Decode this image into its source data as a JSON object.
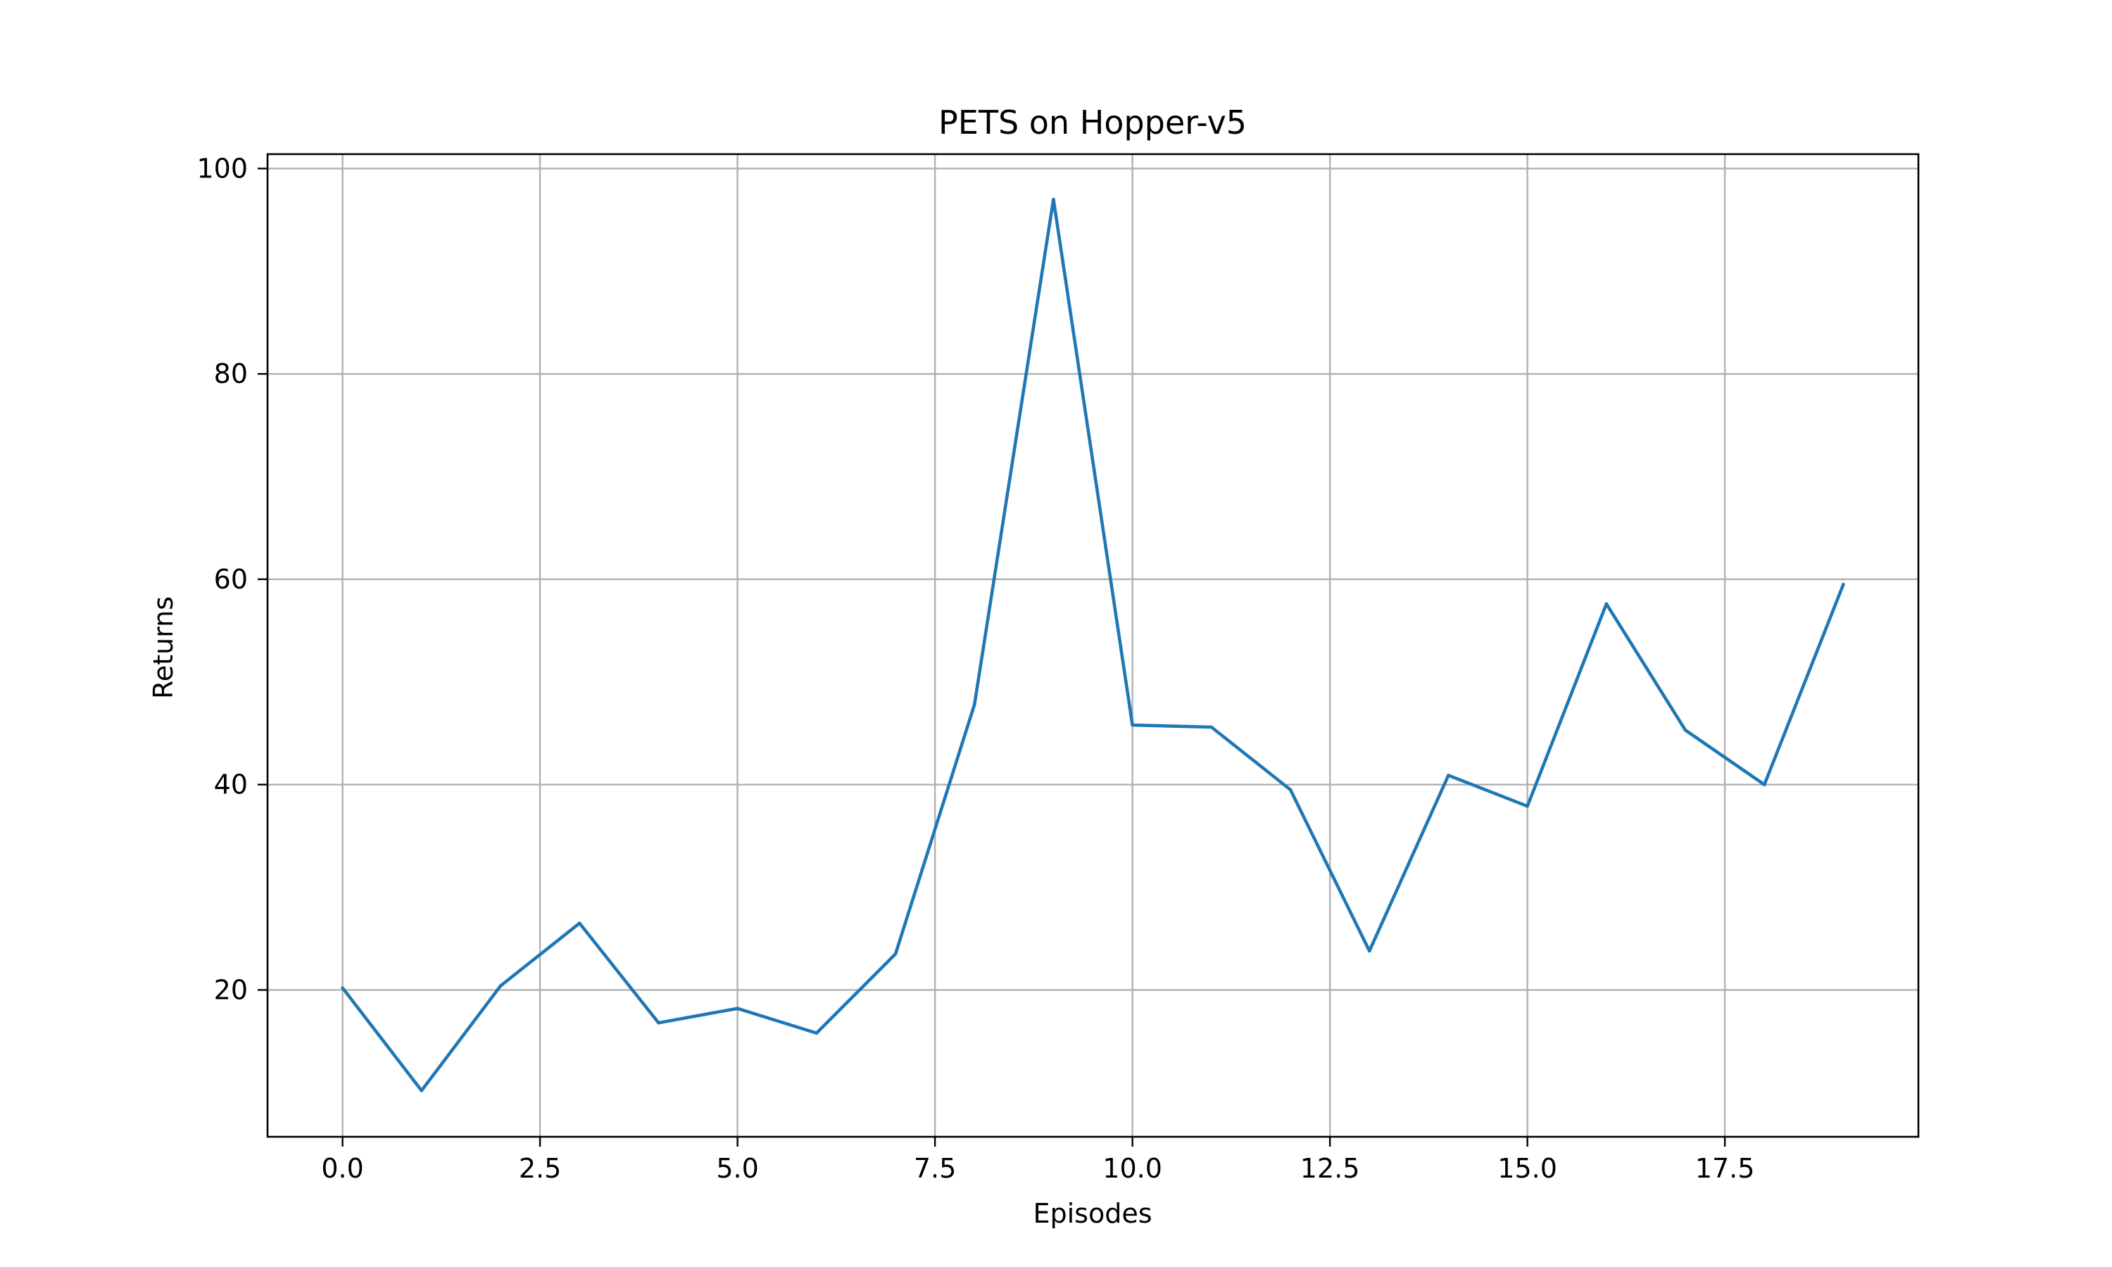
{
  "chart_data": {
    "type": "line",
    "title": "PETS on Hopper-v5",
    "xlabel": "Episodes",
    "ylabel": "Returns",
    "xlim": [
      -0.95,
      19.95
    ],
    "ylim": [
      5.7,
      101.4
    ],
    "xticks": [
      0.0,
      2.5,
      5.0,
      7.5,
      10.0,
      12.5,
      15.0,
      17.5
    ],
    "xtick_labels": [
      "0.0",
      "2.5",
      "5.0",
      "7.5",
      "10.0",
      "12.5",
      "15.0",
      "17.5"
    ],
    "yticks": [
      20,
      40,
      60,
      80,
      100
    ],
    "ytick_labels": [
      "20",
      "40",
      "60",
      "80",
      "100"
    ],
    "grid": true,
    "series": [
      {
        "color": "#1f77b4",
        "x": [
          0,
          1,
          2,
          3,
          4,
          5,
          6,
          7,
          8,
          9,
          10,
          11,
          12,
          13,
          14,
          15,
          16,
          17,
          18,
          19
        ],
        "values": [
          20.2,
          10.2,
          20.4,
          26.5,
          16.8,
          18.2,
          15.8,
          23.5,
          47.8,
          97.0,
          45.8,
          45.6,
          39.5,
          23.8,
          40.9,
          37.9,
          57.6,
          45.3,
          40.0,
          59.5
        ]
      }
    ]
  }
}
